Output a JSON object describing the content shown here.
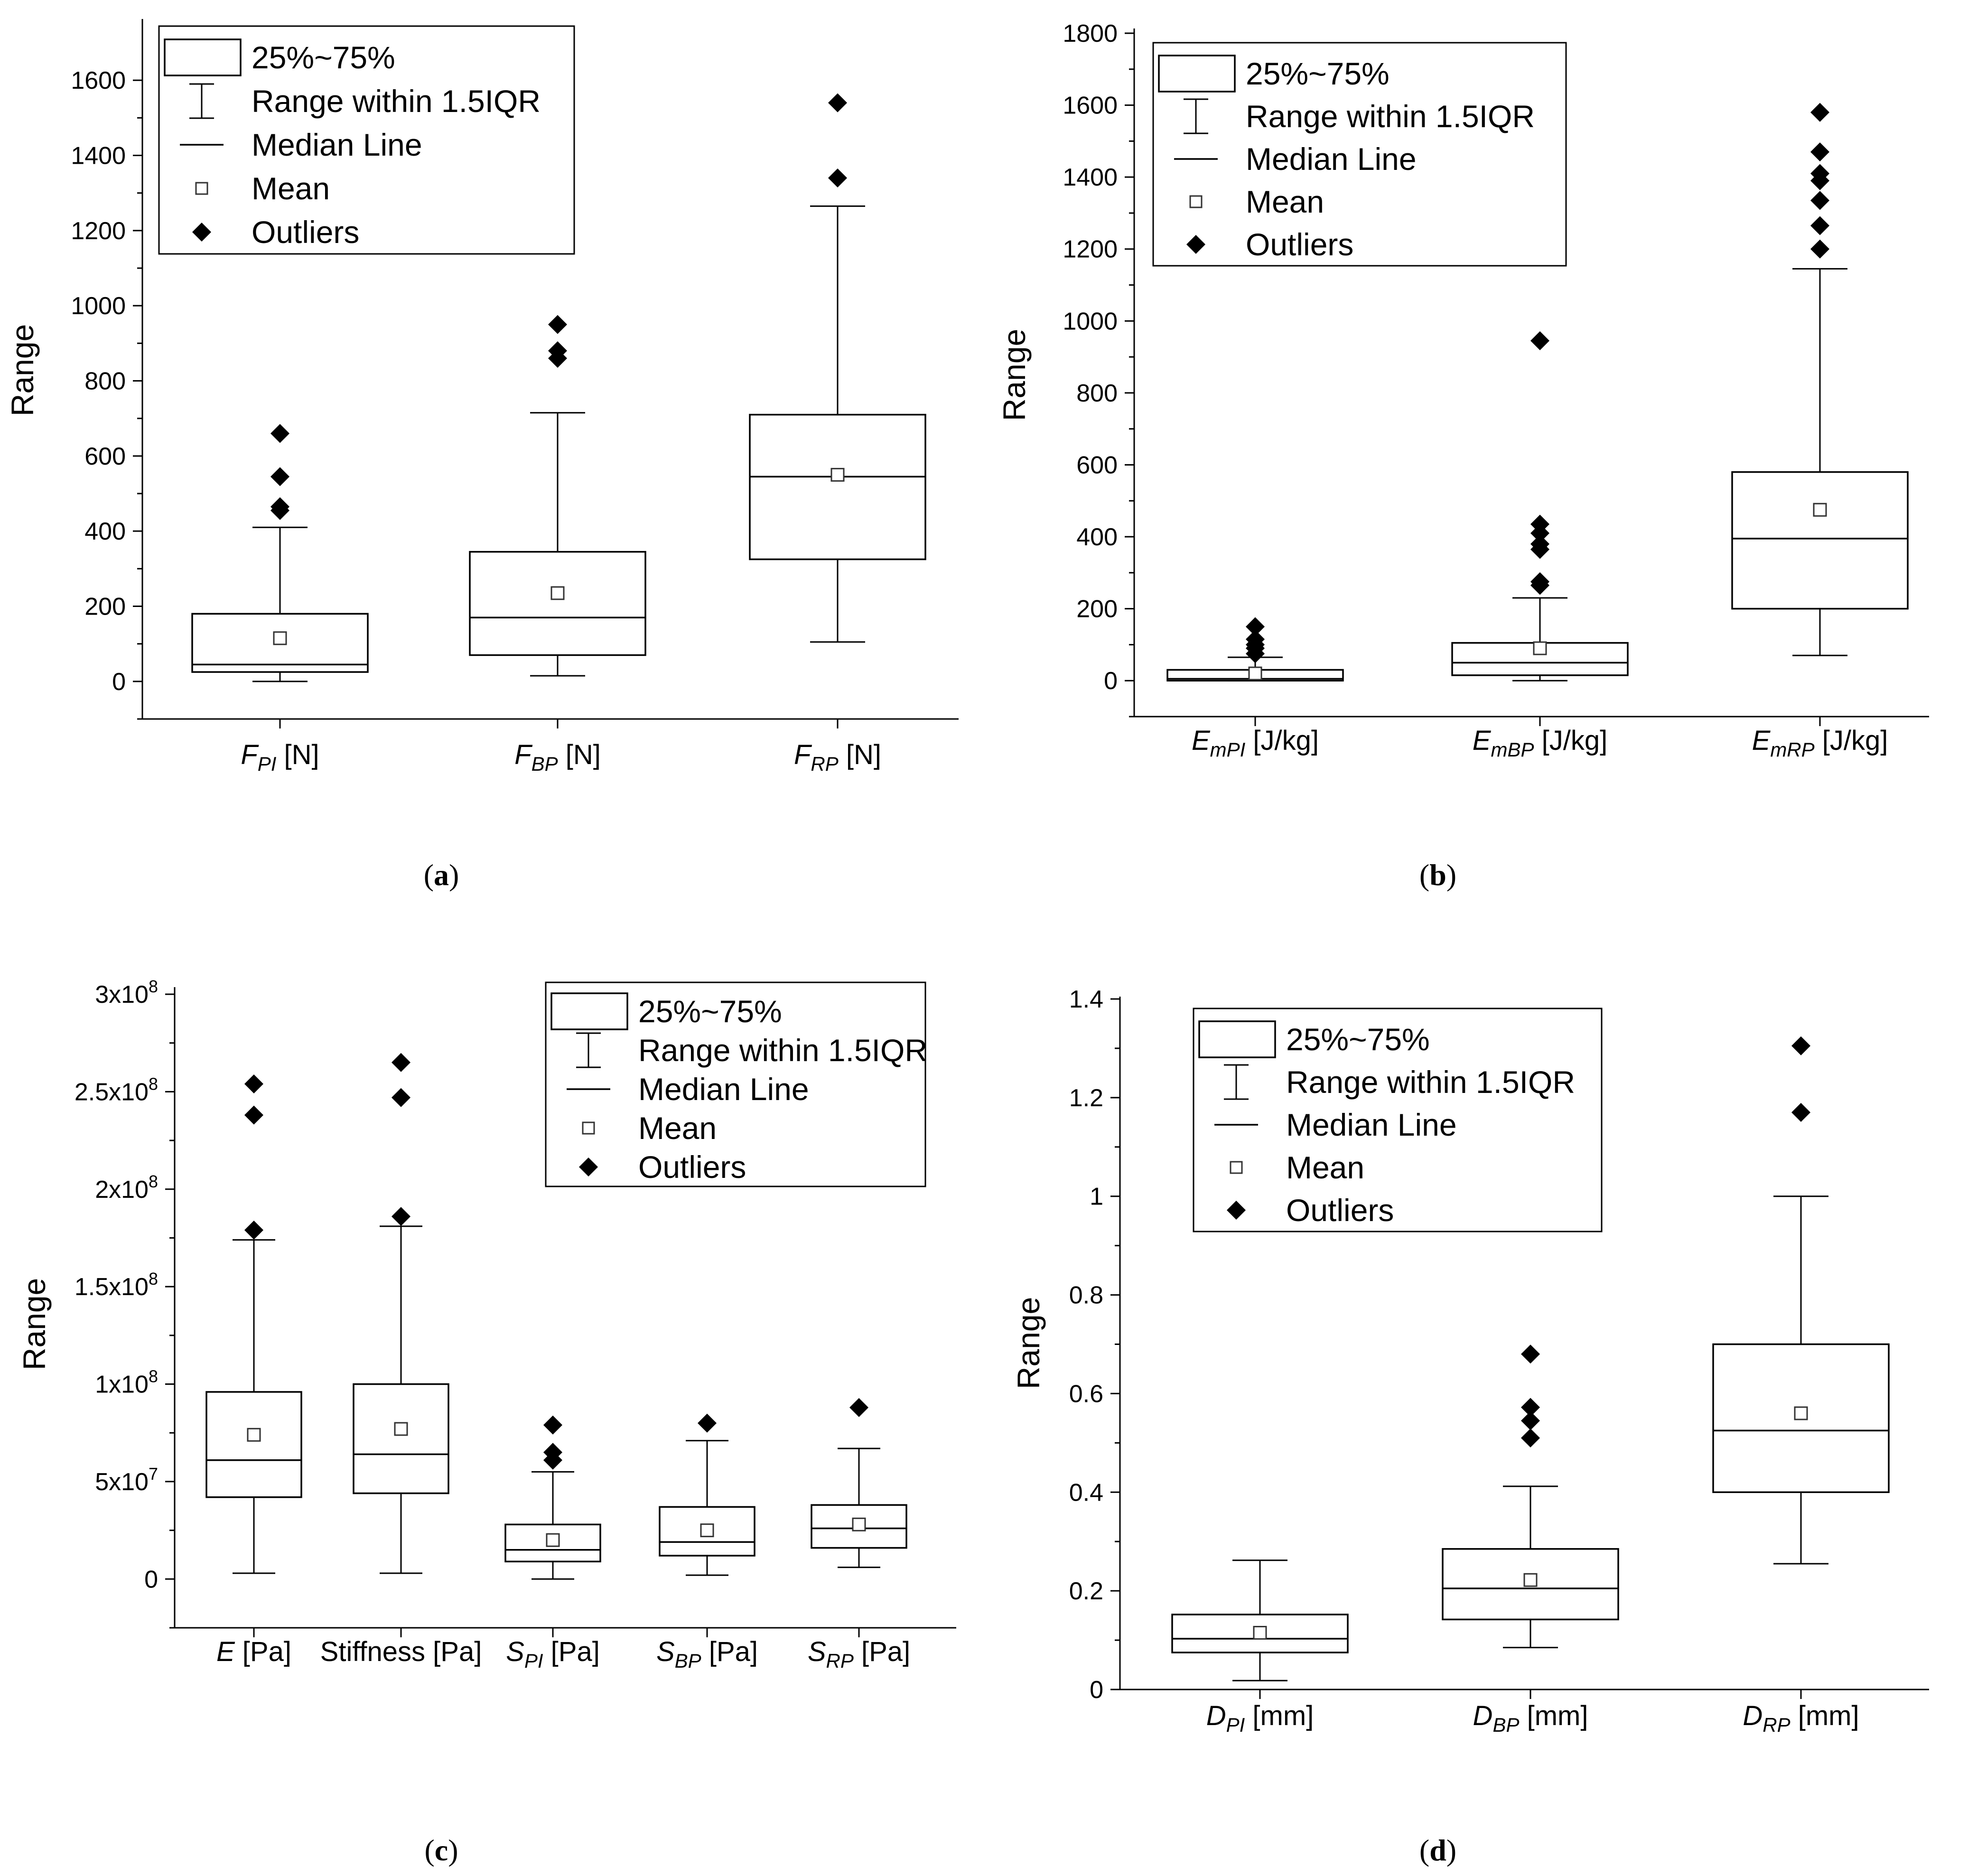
{
  "chart_data": [
    {
      "type": "box",
      "panel": "(a)",
      "panel_letter": "a",
      "ylabel": "Range",
      "ylim": [
        -100,
        1700
      ],
      "yticks": [
        {
          "v": 0,
          "label": "0"
        },
        {
          "v": 200,
          "label": "200"
        },
        {
          "v": 400,
          "label": "400"
        },
        {
          "v": 600,
          "label": "600"
        },
        {
          "v": 800,
          "label": "800"
        },
        {
          "v": 1000,
          "label": "1000"
        },
        {
          "v": 1200,
          "label": "1200"
        },
        {
          "v": 1400,
          "label": "1400"
        },
        {
          "v": 1600,
          "label": "1600"
        }
      ],
      "legend": {
        "box": "25%~75%",
        "range": "Range within 1.5IQR",
        "median": "Median Line",
        "mean": "Mean",
        "outliers": "Outliers"
      },
      "series": [
        {
          "sym": "F",
          "sub": "PI",
          "unit": " [N]",
          "q1": 25,
          "median": 45,
          "q3": 180,
          "mean": 115,
          "wlo": 0,
          "whi": 410,
          "outliers": [
            455,
            465,
            545,
            660
          ]
        },
        {
          "sym": "F",
          "sub": "BP",
          "unit": " [N]",
          "q1": 70,
          "median": 170,
          "q3": 345,
          "mean": 235,
          "wlo": 15,
          "whi": 715,
          "outliers": [
            860,
            880,
            950
          ]
        },
        {
          "sym": "F",
          "sub": "RP",
          "unit": " [N]",
          "q1": 325,
          "median": 545,
          "q3": 710,
          "mean": 550,
          "wlo": 105,
          "whi": 1265,
          "outliers": [
            1340,
            1540
          ]
        }
      ]
    },
    {
      "type": "box",
      "panel": "(b)",
      "panel_letter": "b",
      "ylabel": "Range",
      "ylim": [
        -100,
        1800
      ],
      "yticks": [
        {
          "v": 0,
          "label": "0"
        },
        {
          "v": 200,
          "label": "200"
        },
        {
          "v": 400,
          "label": "400"
        },
        {
          "v": 600,
          "label": "600"
        },
        {
          "v": 800,
          "label": "800"
        },
        {
          "v": 1000,
          "label": "1000"
        },
        {
          "v": 1200,
          "label": "1200"
        },
        {
          "v": 1400,
          "label": "1400"
        },
        {
          "v": 1600,
          "label": "1600"
        },
        {
          "v": 1800,
          "label": "1800"
        }
      ],
      "legend": {
        "box": "25%~75%",
        "range": "Range within 1.5IQR",
        "median": "Median Line",
        "mean": "Mean",
        "outliers": "Outliers"
      },
      "series": [
        {
          "sym": "E",
          "sub": "mPI",
          "unit": " [J/kg]",
          "q1": 0,
          "median": 5,
          "q3": 30,
          "mean": 20,
          "wlo": 0,
          "whi": 65,
          "outliers": [
            75,
            90,
            100,
            115,
            150
          ]
        },
        {
          "sym": "E",
          "sub": "mBP",
          "unit": " [J/kg]",
          "q1": 15,
          "median": 50,
          "q3": 105,
          "mean": 90,
          "wlo": 0,
          "whi": 230,
          "outliers": [
            265,
            275,
            365,
            380,
            410,
            435,
            945
          ]
        },
        {
          "sym": "E",
          "sub": "mRP",
          "unit": " [J/kg]",
          "q1": 200,
          "median": 395,
          "q3": 580,
          "mean": 475,
          "wlo": 70,
          "whi": 1145,
          "outliers": [
            1200,
            1265,
            1335,
            1390,
            1410,
            1470,
            1580
          ]
        }
      ]
    },
    {
      "type": "box",
      "panel": "(c)",
      "panel_letter": "c",
      "ylabel": "Range",
      "ylim": [
        -25000000,
        300000000
      ],
      "yticks": [
        {
          "v": 0,
          "label": "0"
        },
        {
          "v": 50000000,
          "mant": "5x10",
          "exp": "7"
        },
        {
          "v": 100000000,
          "mant": "1x10",
          "exp": "8"
        },
        {
          "v": 150000000,
          "mant": "1.5x10",
          "exp": "8"
        },
        {
          "v": 200000000,
          "mant": "2x10",
          "exp": "8"
        },
        {
          "v": 250000000,
          "mant": "2.5x10",
          "exp": "8"
        },
        {
          "v": 300000000,
          "mant": "3x10",
          "exp": "8"
        }
      ],
      "legend": {
        "box": "25%~75%",
        "range": "Range within 1.5IQR",
        "median": "Median Line",
        "mean": "Mean",
        "outliers": "Outliers"
      },
      "series": [
        {
          "sym": "E",
          "sub": "",
          "unit": " [Pa]",
          "q1": 42000000,
          "median": 61000000,
          "q3": 96000000,
          "mean": 74000000,
          "wlo": 3000000,
          "whi": 174000000,
          "outliers": [
            179000000,
            238000000,
            254000000
          ]
        },
        {
          "sym": "",
          "sub": "",
          "unit": "Stiffness [Pa]",
          "q1": 44000000,
          "median": 64000000,
          "q3": 100000000,
          "mean": 77000000,
          "wlo": 3000000,
          "whi": 181000000,
          "outliers": [
            186000000,
            247000000,
            265000000
          ]
        },
        {
          "sym": "S",
          "sub": "PI",
          "unit": " [Pa]",
          "q1": 9000000,
          "median": 15000000,
          "q3": 28000000,
          "mean": 20000000,
          "wlo": 0,
          "whi": 55000000,
          "outliers": [
            61000000,
            65000000,
            79000000
          ]
        },
        {
          "sym": "S",
          "sub": "BP",
          "unit": " [Pa]",
          "q1": 12000000,
          "median": 19000000,
          "q3": 37000000,
          "mean": 25000000,
          "wlo": 2000000,
          "whi": 71000000,
          "outliers": [
            80000000
          ]
        },
        {
          "sym": "S",
          "sub": "RP",
          "unit": " [Pa]",
          "q1": 16000000,
          "median": 26000000,
          "q3": 38000000,
          "mean": 28000000,
          "wlo": 6000000,
          "whi": 67000000,
          "outliers": [
            88000000
          ]
        }
      ]
    },
    {
      "type": "box",
      "panel": "(d)",
      "panel_letter": "d",
      "ylabel": "Range",
      "ylim": [
        0,
        1.4
      ],
      "yticks": [
        {
          "v": 0,
          "label": "0"
        },
        {
          "v": 0.2,
          "label": "0.2"
        },
        {
          "v": 0.4,
          "label": "0.4"
        },
        {
          "v": 0.6,
          "label": "0.6"
        },
        {
          "v": 0.8,
          "label": "0.8"
        },
        {
          "v": 1.0,
          "label": "1"
        },
        {
          "v": 1.2,
          "label": "1.2"
        },
        {
          "v": 1.4,
          "label": "1.4"
        }
      ],
      "legend": {
        "box": "25%~75%",
        "range": "Range within 1.5IQR",
        "median": "Median Line",
        "mean": "Mean",
        "outliers": "Outliers"
      },
      "series": [
        {
          "sym": "D",
          "sub": "PI",
          "unit": " [mm]",
          "q1": 0.075,
          "median": 0.103,
          "q3": 0.152,
          "mean": 0.115,
          "wlo": 0.018,
          "whi": 0.262,
          "outliers": []
        },
        {
          "sym": "D",
          "sub": "BP",
          "unit": " [mm]",
          "q1": 0.142,
          "median": 0.205,
          "q3": 0.285,
          "mean": 0.222,
          "wlo": 0.085,
          "whi": 0.412,
          "outliers": [
            0.51,
            0.545,
            0.572,
            0.68
          ]
        },
        {
          "sym": "D",
          "sub": "RP",
          "unit": " [mm]",
          "q1": 0.4,
          "median": 0.525,
          "q3": 0.7,
          "mean": 0.56,
          "wlo": 0.255,
          "whi": 1.0,
          "outliers": [
            1.17,
            1.305
          ]
        }
      ]
    }
  ]
}
